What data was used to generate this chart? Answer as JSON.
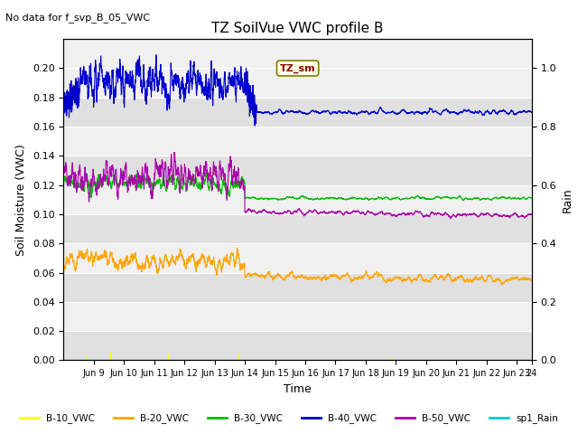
{
  "title": "TZ SoilVue VWC profile B",
  "subtitle": "No data for f_svp_B_05_VWC",
  "xlabel": "Time",
  "ylabel_left": "Soil Moisture (VWC)",
  "ylabel_right": "Rain",
  "xlim": [
    0,
    15.5
  ],
  "ylim_left": [
    0,
    0.22
  ],
  "ylim_right": [
    0,
    1.1
  ],
  "xtick_positions": [
    1,
    2,
    3,
    4,
    5,
    6,
    7,
    8,
    9,
    10,
    11,
    12,
    13,
    14,
    15,
    15.5
  ],
  "xtick_labels": [
    "Jun 9",
    "Jun 10",
    "Jun 11",
    "Jun 12",
    "Jun 13",
    "Jun 14",
    "Jun 15",
    "Jun 16",
    "Jun 17",
    "Jun 18",
    "Jun 19",
    "Jun 20",
    "Jun 21",
    "Jun 22",
    "Jun 23",
    "24"
  ],
  "colors": {
    "B10": "#ffff00",
    "B20": "#ffa500",
    "B30": "#00bb00",
    "B40": "#0000cc",
    "B50": "#aa00aa",
    "rain": "#00cccc"
  },
  "legend_labels": [
    "B-10_VWC",
    "B-20_VWC",
    "B-30_VWC",
    "B-40_VWC",
    "B-50_VWC",
    "sp1_Rain"
  ],
  "annotation_box": "TZ_sm",
  "fig_bg": "#ffffff",
  "plot_bg_light": "#f0f0f0",
  "plot_bg_dark": "#e0e0e0",
  "grid_color": "#ffffff"
}
